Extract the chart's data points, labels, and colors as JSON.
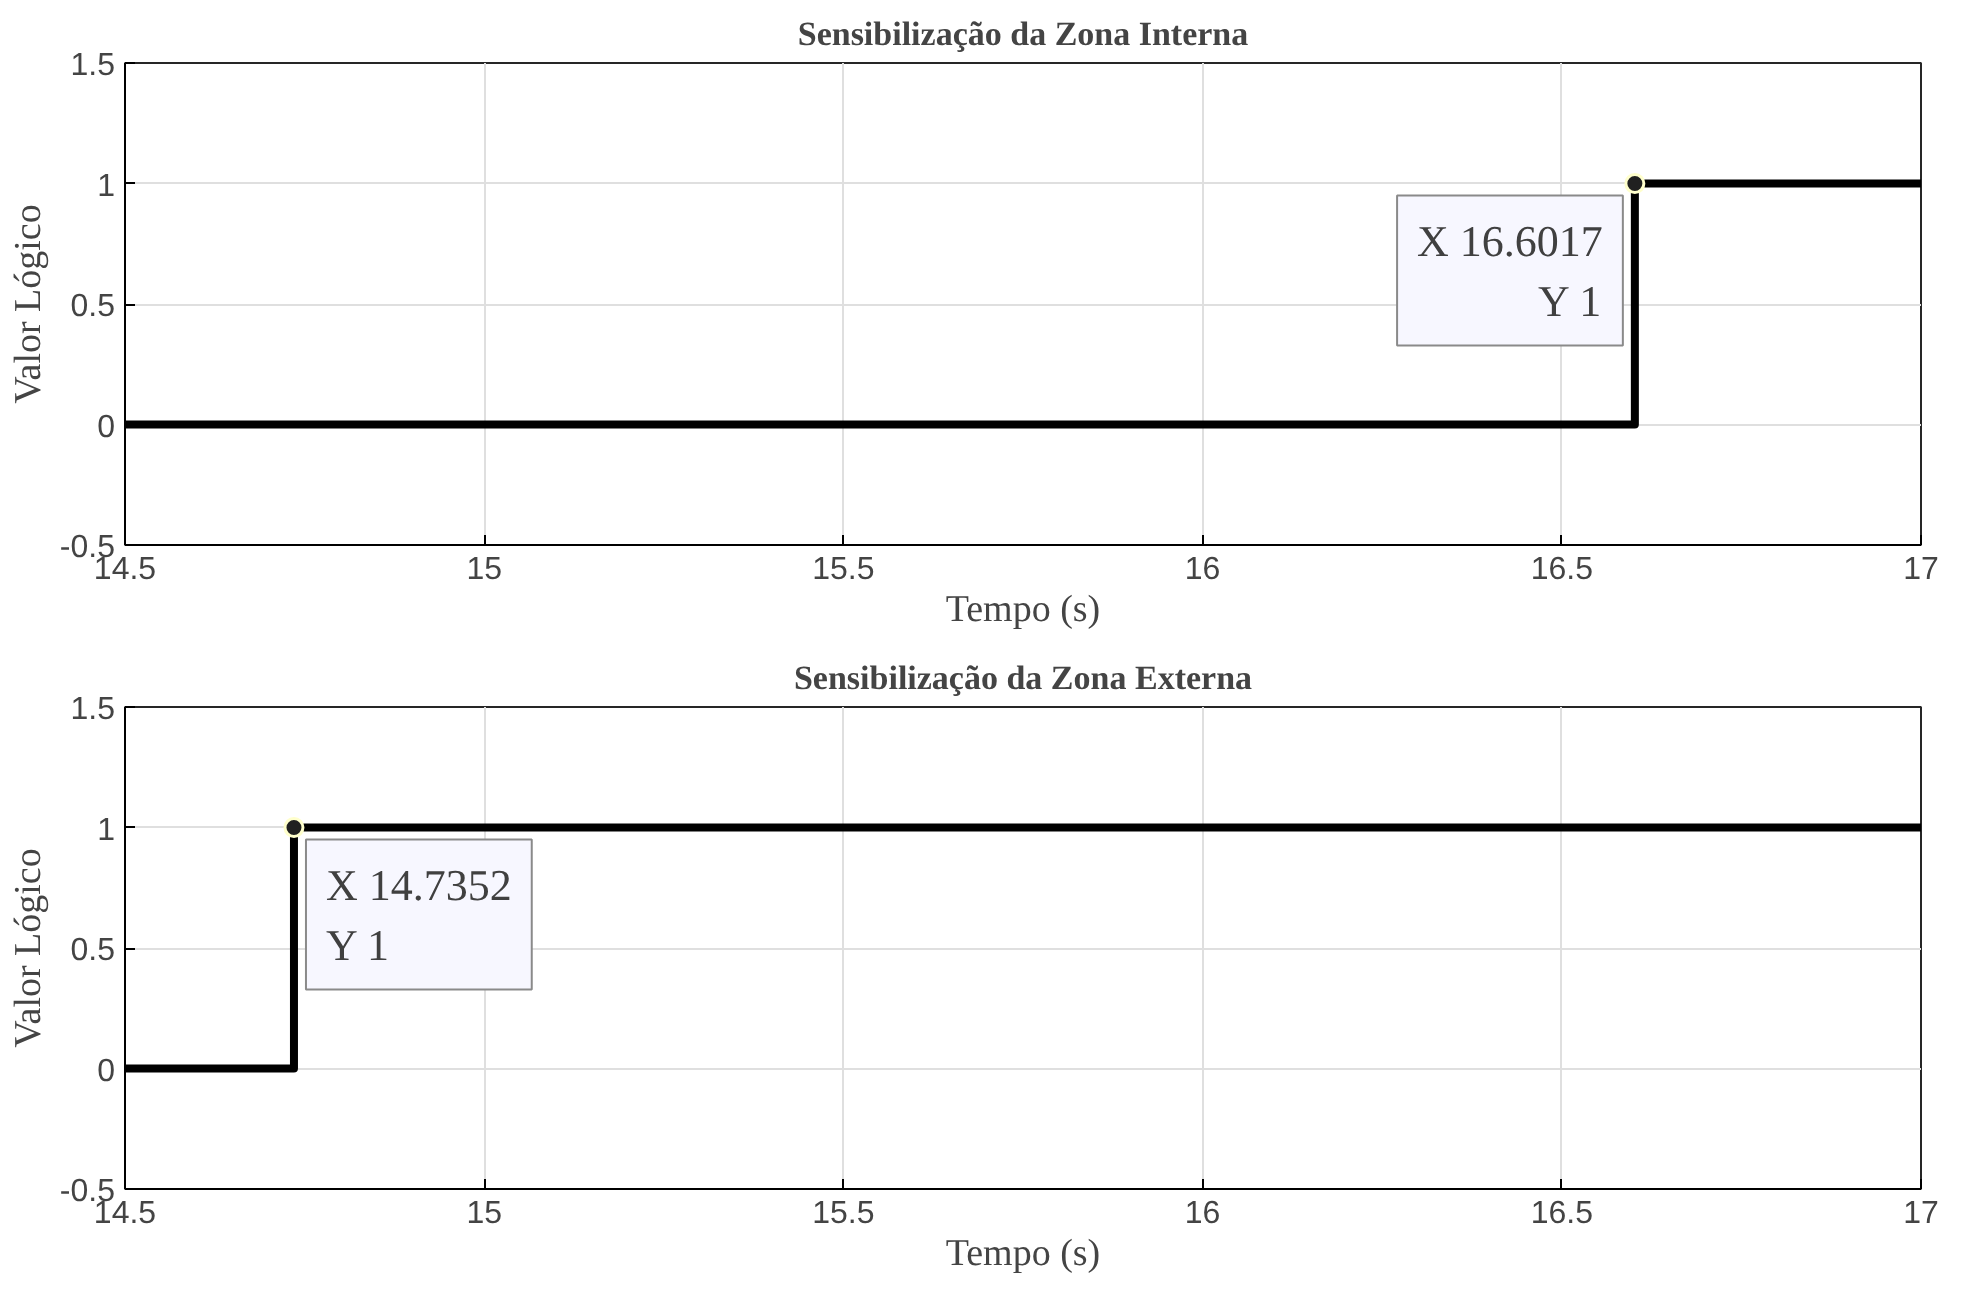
{
  "chart_data": [
    {
      "type": "step",
      "title": "Sensibilização da Zona Interna",
      "xlabel": "Tempo (s)",
      "ylabel": "Valor Lógico",
      "x": [
        14.5,
        16.6017,
        17
      ],
      "series": [
        {
          "color": "#000000",
          "values": [
            0,
            1,
            1
          ]
        }
      ],
      "xlim": [
        14.5,
        17
      ],
      "xticks": [
        14.5,
        15,
        15.5,
        16,
        16.5,
        17
      ],
      "ylim": [
        -0.5,
        1.5
      ],
      "yticks": [
        -0.5,
        0,
        0.5,
        1,
        1.5
      ],
      "grid": true,
      "annotations": [
        {
          "text": "X 16.6017\nY 1",
          "x": 16.6017,
          "y": 1
        }
      ]
    },
    {
      "type": "step",
      "title": "Sensibilização da Zona Externa",
      "xlabel": "Tempo (s)",
      "ylabel": "Valor Lógico",
      "x": [
        14.5,
        14.7352,
        17
      ],
      "series": [
        {
          "color": "#000000",
          "values": [
            0,
            1,
            1
          ]
        }
      ],
      "xlim": [
        14.5,
        17
      ],
      "xticks": [
        14.5,
        15,
        15.5,
        16,
        16.5,
        17
      ],
      "ylim": [
        -0.5,
        1.5
      ],
      "yticks": [
        -0.5,
        0,
        0.5,
        1,
        1.5
      ],
      "grid": true,
      "annotations": [
        {
          "text": "X 14.7352\nY 1",
          "x": 14.7352,
          "y": 1
        }
      ]
    }
  ]
}
